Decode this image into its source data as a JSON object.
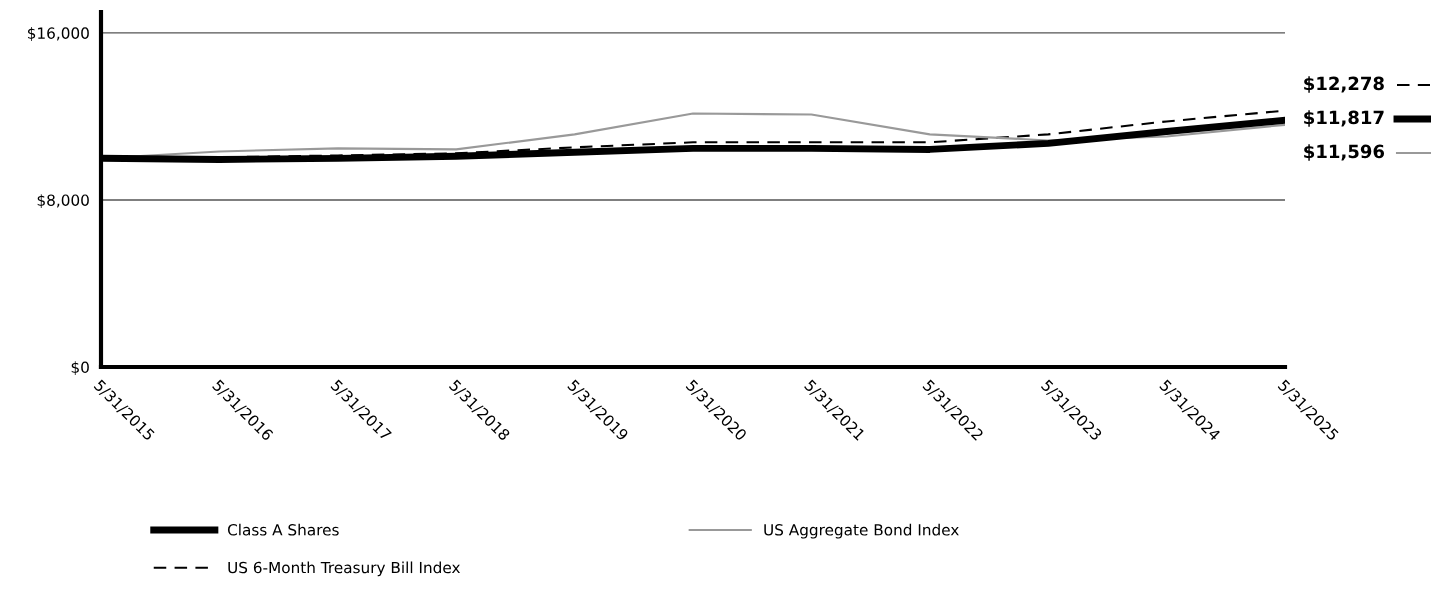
{
  "chart_data": {
    "type": "line",
    "categories": [
      "5/31/2015",
      "5/31/2016",
      "5/31/2017",
      "5/31/2018",
      "5/31/2019",
      "5/31/2020",
      "5/31/2021",
      "5/31/2022",
      "5/31/2023",
      "5/31/2024",
      "5/31/2025"
    ],
    "series": [
      {
        "name": "Class A Shares",
        "color": "#000000",
        "line_style": "solid",
        "values": [
          10000,
          9940,
          9990,
          10090,
          10280,
          10470,
          10470,
          10420,
          10710,
          11280,
          11817
        ]
      },
      {
        "name": "US Aggregate Bond Index",
        "color": "#999999",
        "line_style": "solid",
        "values": [
          10000,
          10320,
          10470,
          10420,
          11140,
          12140,
          12090,
          11140,
          10850,
          11040,
          11596
        ]
      },
      {
        "name": "US 6-Month Treasury Bill Index",
        "color": "#000000",
        "line_style": "dashed",
        "values": [
          10000,
          10040,
          10130,
          10230,
          10520,
          10760,
          10760,
          10760,
          11140,
          11760,
          12278
        ]
      }
    ],
    "ylim": [
      0,
      17000
    ],
    "yticks": [
      {
        "value": 0,
        "label": "$0"
      },
      {
        "value": 8000,
        "label": "$8,000"
      },
      {
        "value": 16000,
        "label": "$16,000"
      }
    ],
    "grid": "y",
    "legend": "bottom",
    "marker": "none",
    "annotations": [
      "$12,278",
      "$11,817",
      "$11,596"
    ]
  }
}
